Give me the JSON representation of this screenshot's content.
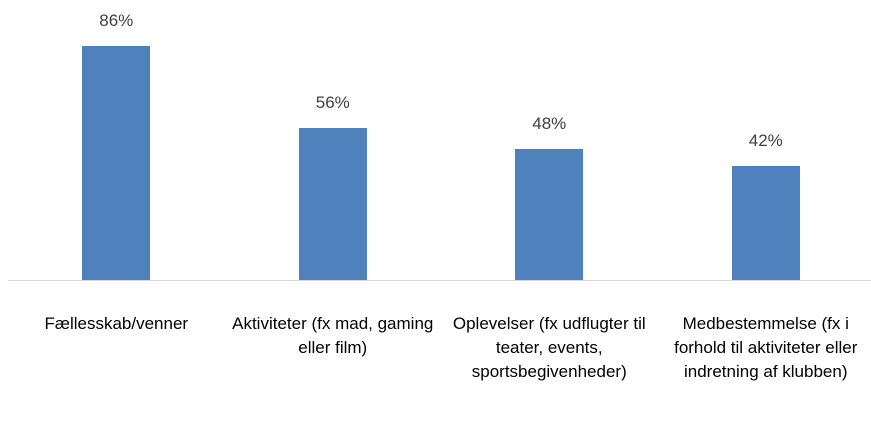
{
  "chart_data": {
    "type": "bar",
    "categories": [
      "Fællesskab/venner",
      "Aktiviteter (fx mad, gaming eller film)",
      "Oplevelser (fx udflugter til teater, events, sportsbegivenheder)",
      "Medbestemmelse (fx i forhold til aktiviteter eller indretning af klubben)"
    ],
    "values": [
      86,
      56,
      48,
      42
    ],
    "value_labels": [
      "86%",
      "56%",
      "48%",
      "42%"
    ],
    "color": "#4f81bd"
  }
}
